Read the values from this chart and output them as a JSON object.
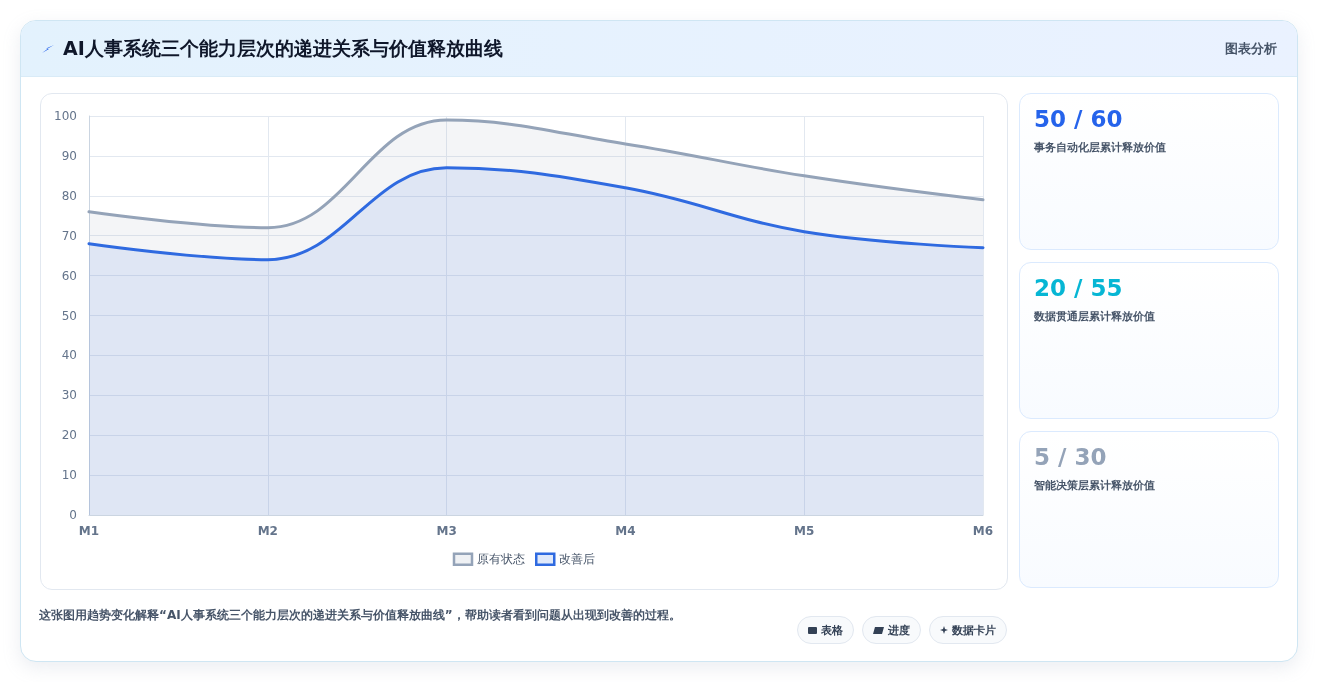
{
  "chart_data": [
    {
      "type": "area",
      "title": "AI人事系统三个能力层次的递进关系与价值释放曲线",
      "categories": [
        "M1",
        "M2",
        "M3",
        "M4",
        "M5",
        "M6"
      ],
      "series": [
        {
          "name": "原有状态",
          "color": "#94a3b8",
          "values": [
            76,
            72,
            99,
            93,
            85,
            79
          ]
        },
        {
          "name": "改善后",
          "color": "#2f6ae0",
          "values": [
            68,
            64,
            87,
            82,
            71,
            67
          ]
        }
      ],
      "ylim": [
        0,
        100
      ],
      "yticks": [
        0,
        10,
        20,
        30,
        40,
        50,
        60,
        70,
        80,
        90,
        100
      ],
      "grid": true,
      "legend": "bottom",
      "marker": "none",
      "line_style": "solid",
      "annotations": [
        "图表分析",
        "这张图用趋势变化解释“AI人事系统三个能力层次的递进关系与价值释放曲线”，帮助读者看到问题从出现到改善的过程。",
        "表格",
        "进度",
        "数据卡片"
      ]
    },
    {
      "type": "other",
      "colors": [
        "#2563eb",
        "#06b6d4",
        "#94a3b8"
      ],
      "annotations": [
        "50 / 60",
        "事务自动化层累计释放价值",
        "20 / 55",
        "数据贯通层累计释放价值",
        "5 / 30",
        "智能决策层累计释放价值"
      ]
    }
  ]
}
